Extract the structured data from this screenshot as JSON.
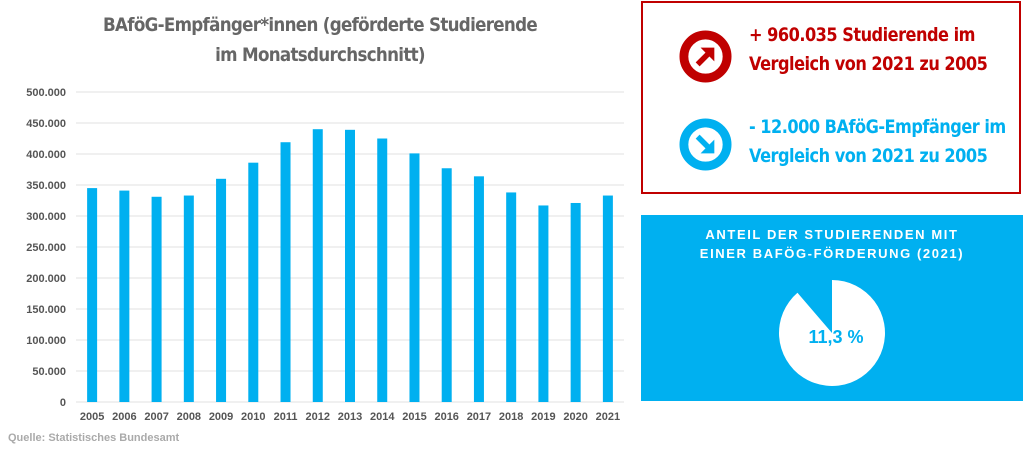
{
  "chart_data": {
    "type": "bar",
    "title": "BAföG-Empfänger*innen (geförderte Studierende im Monatsdurchschnitt)",
    "categories": [
      "2005",
      "2006",
      "2007",
      "2008",
      "2009",
      "2010",
      "2011",
      "2012",
      "2013",
      "2014",
      "2015",
      "2016",
      "2017",
      "2018",
      "2019",
      "2020",
      "2021"
    ],
    "values": [
      345000,
      341000,
      331000,
      333000,
      360000,
      386000,
      419000,
      440000,
      439000,
      425000,
      401000,
      377000,
      364000,
      338000,
      317000,
      321000,
      333000
    ],
    "yticks": [
      "0",
      "50.000",
      "100.000",
      "150.000",
      "200.000",
      "250.000",
      "300.000",
      "350.000",
      "400.000",
      "450.000",
      "500.000"
    ],
    "ylim": [
      0,
      500000
    ],
    "grid": true,
    "color": "#00b0f0"
  },
  "source": "Quelle: Statistisches Bundesamt",
  "stats": {
    "up": "+ 960.035 Studierende im Vergleich von 2021 zu 2005",
    "down": "- 12.000 BAföG-Empfänger im Vergleich von 2021 zu 2005",
    "up_color": "#c00000",
    "down_color": "#00b0f0"
  },
  "pie": {
    "title": "ANTEIL DER STUDIERENDEN MIT EINER BAFÖG-FÖRDERUNG (2021)",
    "value_label": "11,3 %",
    "share_percent": 11.3
  }
}
